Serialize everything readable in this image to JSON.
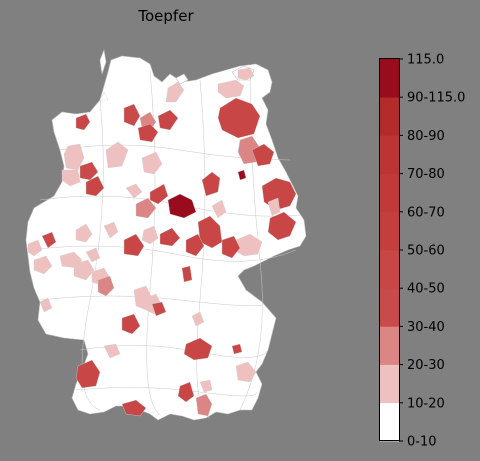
{
  "title": "Toepfer",
  "colors": {
    "background": "#808080",
    "land": "#ffffff",
    "border": "#b8b8b8"
  },
  "legend": {
    "bins": [
      {
        "label": "0-10",
        "color": "#ffffff"
      },
      {
        "label": "10-20",
        "color": "#eec0c0"
      },
      {
        "label": "20-30",
        "color": "#db8585"
      },
      {
        "label": "30-40",
        "color": "#c94a4a"
      },
      {
        "label": "40-50",
        "color": "#c84646"
      },
      {
        "label": "50-60",
        "color": "#c43e3e"
      },
      {
        "label": "60-70",
        "color": "#c23939"
      },
      {
        "label": "70-80",
        "color": "#bd3434"
      },
      {
        "label": "80-90",
        "color": "#b42b2b"
      },
      {
        "label": "90-115.0",
        "color": "#a81e28"
      },
      {
        "label": "115.0",
        "color": "#990c1e"
      }
    ],
    "tick_labels": [
      "0-10",
      "10-20",
      "20-30",
      "30-40",
      "40-50",
      "50-60",
      "60-70",
      "70-80",
      "80-90",
      "90-115.0",
      "115.0"
    ]
  },
  "regions": [
    {
      "id": "schleswig-west",
      "bin": 0
    },
    {
      "id": "ruegen-east",
      "bin": 1
    },
    {
      "id": "ruegen-west",
      "bin": 1
    },
    {
      "id": "vorpommern",
      "bin": 1
    },
    {
      "id": "rostock-area",
      "bin": 1
    },
    {
      "id": "mecklenburg-se",
      "bin": 4
    },
    {
      "id": "bremen-west",
      "bin": 4
    },
    {
      "id": "hamburg-south",
      "bin": 3
    },
    {
      "id": "hamburg-area",
      "bin": 2
    },
    {
      "id": "hamburg-east",
      "bin": 4
    },
    {
      "id": "friesland",
      "bin": 4
    },
    {
      "id": "emsland-north",
      "bin": 1
    },
    {
      "id": "emsland",
      "bin": 1
    },
    {
      "id": "lower-saxony-n",
      "bin": 1
    },
    {
      "id": "lower-saxony-c",
      "bin": 1
    },
    {
      "id": "oldenburg",
      "bin": 3
    },
    {
      "id": "osnabrueck",
      "bin": 4
    },
    {
      "id": "hannover-east",
      "bin": 1
    },
    {
      "id": "magdeburg-w",
      "bin": 2
    },
    {
      "id": "harz",
      "bin": 4
    },
    {
      "id": "saxony-anhalt-c",
      "bin": 10
    },
    {
      "id": "saxony-anhalt-n",
      "bin": 4
    },
    {
      "id": "brandenburg-n",
      "bin": 2
    },
    {
      "id": "berlin",
      "bin": 10
    },
    {
      "id": "brandenburg-e",
      "bin": 4
    },
    {
      "id": "brandenburg-s",
      "bin": 4
    },
    {
      "id": "lausitz",
      "bin": 4
    },
    {
      "id": "cottbus",
      "bin": 1
    },
    {
      "id": "goerlitz",
      "bin": 1
    },
    {
      "id": "dresden-east",
      "bin": 4
    },
    {
      "id": "leipzig",
      "bin": 4
    },
    {
      "id": "saxony-c",
      "bin": 1
    },
    {
      "id": "chemnitz",
      "bin": 4
    },
    {
      "id": "thuringia-n",
      "bin": 4
    },
    {
      "id": "thuringia-c",
      "bin": 1
    },
    {
      "id": "goettingen",
      "bin": 1
    },
    {
      "id": "kassel",
      "bin": 4
    },
    {
      "id": "hesse-n",
      "bin": 1
    },
    {
      "id": "ruhr-w",
      "bin": 1
    },
    {
      "id": "aachen",
      "bin": 1
    },
    {
      "id": "cologne",
      "bin": 3
    },
    {
      "id": "bonn",
      "bin": 1
    },
    {
      "id": "siegen",
      "bin": 1
    },
    {
      "id": "koblenz",
      "bin": 1
    },
    {
      "id": "hesse-c",
      "bin": 1
    },
    {
      "id": "frankfurt",
      "bin": 2
    },
    {
      "id": "wuerzburg",
      "bin": 4
    },
    {
      "id": "palatinate",
      "bin": 1
    },
    {
      "id": "saarland",
      "bin": 1
    },
    {
      "id": "heilbronn",
      "bin": 1
    },
    {
      "id": "bavaria-w",
      "bin": 1
    },
    {
      "id": "stuttgart",
      "bin": 4
    },
    {
      "id": "nuremberg",
      "bin": 3
    },
    {
      "id": "regensburg",
      "bin": 4
    },
    {
      "id": "passau",
      "bin": 4
    },
    {
      "id": "freiburg",
      "bin": 4
    },
    {
      "id": "lake-constance",
      "bin": 4
    },
    {
      "id": "munich",
      "bin": 1
    },
    {
      "id": "garmisch",
      "bin": 4
    },
    {
      "id": "rosenheim",
      "bin": 2
    },
    {
      "id": "allgaeu",
      "bin": 1
    },
    {
      "id": "augsburg",
      "bin": 1
    }
  ]
}
